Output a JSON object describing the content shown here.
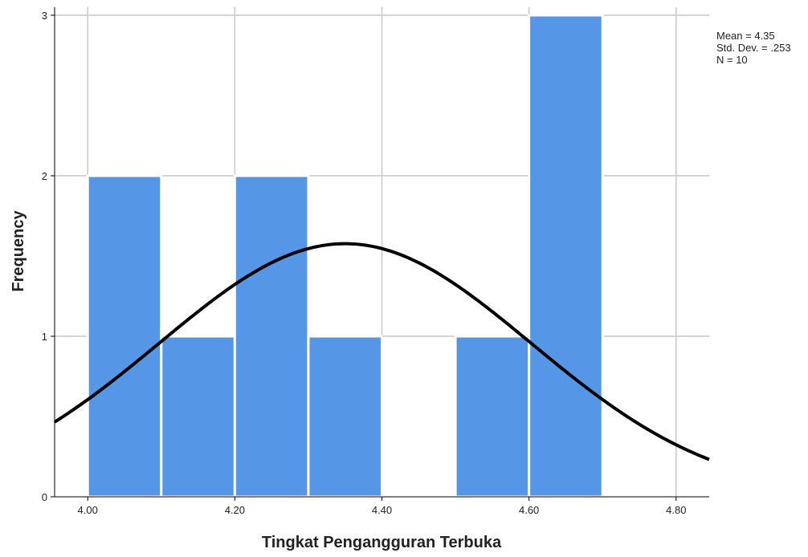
{
  "chart_data": {
    "type": "bar",
    "subtype": "histogram",
    "xlabel": "Tingkat Pengangguran Terbuka",
    "ylabel": "Frequency",
    "xlim": [
      3.955,
      4.845
    ],
    "ylim": [
      0,
      3.05
    ],
    "x_ticks": [
      {
        "value": 4.0,
        "label": "4.00"
      },
      {
        "value": 4.2,
        "label": "4.20"
      },
      {
        "value": 4.4,
        "label": "4.40"
      },
      {
        "value": 4.6,
        "label": "4.60"
      },
      {
        "value": 4.8,
        "label": "4.80"
      }
    ],
    "y_ticks": [
      {
        "value": 0,
        "label": "0"
      },
      {
        "value": 1,
        "label": "1"
      },
      {
        "value": 2,
        "label": "2"
      },
      {
        "value": 3,
        "label": "3"
      }
    ],
    "bins": [
      {
        "start": 4.0,
        "end": 4.1,
        "count": 2
      },
      {
        "start": 4.1,
        "end": 4.2,
        "count": 1
      },
      {
        "start": 4.2,
        "end": 4.3,
        "count": 2
      },
      {
        "start": 4.3,
        "end": 4.4,
        "count": 1
      },
      {
        "start": 4.4,
        "end": 4.5,
        "count": 0
      },
      {
        "start": 4.5,
        "end": 4.6,
        "count": 1
      },
      {
        "start": 4.6,
        "end": 4.7,
        "count": 3
      }
    ],
    "normal_curve": {
      "mean": 4.35,
      "std_dev": 0.253,
      "n": 10,
      "bin_width": 0.1
    },
    "stats_text": [
      "Mean = 4.35",
      "Std. Dev. = .253",
      "N = 10"
    ],
    "grid": true,
    "legend": "top-right",
    "colors": {
      "bar": "#5596e6",
      "bar_edge": "#ffffff",
      "curve": "#000000",
      "grid": "#c8c8c8",
      "axis": "#000000"
    }
  }
}
